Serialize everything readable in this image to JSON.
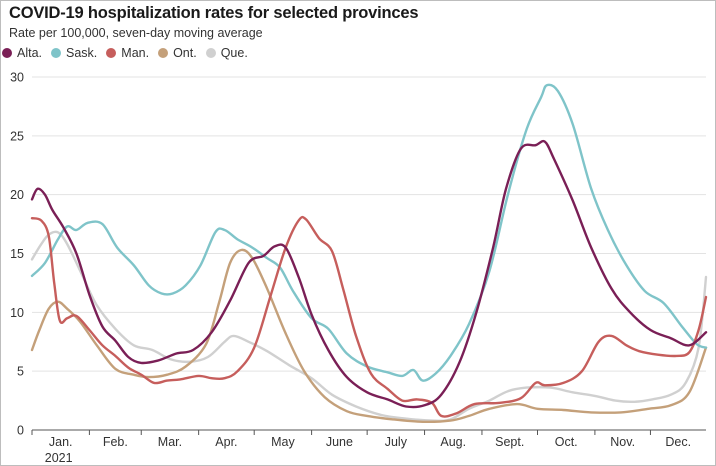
{
  "title": "COVID-19 hospitalization rates for selected provinces",
  "subtitle": "Rate per 100,000, seven-day moving average",
  "chart_data": {
    "type": "line",
    "title": "COVID-19 hospitalization rates for selected provinces",
    "subtitle": "Rate per 100,000, seven-day moving average",
    "xlabel": "",
    "ylabel": "",
    "ylim": [
      0,
      30
    ],
    "yticks": [
      0,
      5,
      10,
      15,
      20,
      25,
      30
    ],
    "xlim": [
      "2021-01-01",
      "2021-12-31"
    ],
    "month_labels": [
      "Jan.",
      "Feb.",
      "Mar.",
      "Apr.",
      "May",
      "June",
      "July",
      "Aug.",
      "Sept.",
      "Oct.",
      "Nov.",
      "Dec."
    ],
    "year_label": "2021",
    "grid": true,
    "legend_position": "top-left",
    "series": [
      {
        "name": "Alta.",
        "color": "#7a1f56",
        "points": [
          [
            "2021-01-01",
            19.6
          ],
          [
            "2021-01-04",
            20.5
          ],
          [
            "2021-01-08",
            20.0
          ],
          [
            "2021-01-12",
            18.7
          ],
          [
            "2021-01-18",
            17.2
          ],
          [
            "2021-01-25",
            15.0
          ],
          [
            "2021-02-01",
            11.5
          ],
          [
            "2021-02-08",
            8.8
          ],
          [
            "2021-02-15",
            7.6
          ],
          [
            "2021-02-22",
            6.2
          ],
          [
            "2021-03-01",
            5.7
          ],
          [
            "2021-03-10",
            5.9
          ],
          [
            "2021-03-20",
            6.5
          ],
          [
            "2021-03-29",
            6.8
          ],
          [
            "2021-04-08",
            8.3
          ],
          [
            "2021-04-18",
            11.0
          ],
          [
            "2021-04-28",
            14.2
          ],
          [
            "2021-05-06",
            14.8
          ],
          [
            "2021-05-12",
            15.6
          ],
          [
            "2021-05-18",
            15.5
          ],
          [
            "2021-05-25",
            13.0
          ],
          [
            "2021-06-01",
            9.8
          ],
          [
            "2021-06-10",
            6.8
          ],
          [
            "2021-06-20",
            4.5
          ],
          [
            "2021-07-01",
            3.2
          ],
          [
            "2021-07-12",
            2.6
          ],
          [
            "2021-07-22",
            2.0
          ],
          [
            "2021-08-01",
            2.1
          ],
          [
            "2021-08-10",
            3.0
          ],
          [
            "2021-08-20",
            5.8
          ],
          [
            "2021-08-29",
            10.0
          ],
          [
            "2021-09-07",
            15.5
          ],
          [
            "2021-09-14",
            20.5
          ],
          [
            "2021-09-22",
            23.9
          ],
          [
            "2021-09-30",
            24.2
          ],
          [
            "2021-10-05",
            24.5
          ],
          [
            "2021-10-10",
            23.0
          ],
          [
            "2021-10-20",
            19.5
          ],
          [
            "2021-10-30",
            15.5
          ],
          [
            "2021-11-10",
            12.0
          ],
          [
            "2021-11-20",
            10.0
          ],
          [
            "2021-12-01",
            8.5
          ],
          [
            "2021-12-12",
            7.8
          ],
          [
            "2021-12-22",
            7.2
          ],
          [
            "2021-12-31",
            8.3
          ]
        ]
      },
      {
        "name": "Sask.",
        "color": "#7fc4c9",
        "points": [
          [
            "2021-01-01",
            13.1
          ],
          [
            "2021-01-08",
            14.2
          ],
          [
            "2021-01-15",
            16.2
          ],
          [
            "2021-01-20",
            17.3
          ],
          [
            "2021-01-25",
            17.0
          ],
          [
            "2021-01-31",
            17.6
          ],
          [
            "2021-02-08",
            17.5
          ],
          [
            "2021-02-16",
            15.5
          ],
          [
            "2021-02-25",
            14.0
          ],
          [
            "2021-03-05",
            12.3
          ],
          [
            "2021-03-12",
            11.6
          ],
          [
            "2021-03-18",
            11.6
          ],
          [
            "2021-03-25",
            12.3
          ],
          [
            "2021-04-02",
            14.0
          ],
          [
            "2021-04-10",
            16.8
          ],
          [
            "2021-04-15",
            17.0
          ],
          [
            "2021-04-22",
            16.2
          ],
          [
            "2021-04-30",
            15.5
          ],
          [
            "2021-05-08",
            14.6
          ],
          [
            "2021-05-15",
            13.8
          ],
          [
            "2021-05-22",
            11.8
          ],
          [
            "2021-06-01",
            9.5
          ],
          [
            "2021-06-10",
            8.6
          ],
          [
            "2021-06-20",
            6.5
          ],
          [
            "2021-07-01",
            5.4
          ],
          [
            "2021-07-12",
            4.9
          ],
          [
            "2021-07-20",
            4.6
          ],
          [
            "2021-07-26",
            5.1
          ],
          [
            "2021-07-31",
            4.2
          ],
          [
            "2021-08-07",
            4.8
          ],
          [
            "2021-08-15",
            6.3
          ],
          [
            "2021-08-25",
            9.0
          ],
          [
            "2021-09-05",
            13.5
          ],
          [
            "2021-09-15",
            20.0
          ],
          [
            "2021-09-25",
            25.5
          ],
          [
            "2021-10-03",
            28.3
          ],
          [
            "2021-10-06",
            29.3
          ],
          [
            "2021-10-12",
            28.8
          ],
          [
            "2021-10-20",
            26.0
          ],
          [
            "2021-10-30",
            20.5
          ],
          [
            "2021-11-08",
            17.0
          ],
          [
            "2021-11-18",
            14.0
          ],
          [
            "2021-11-28",
            11.8
          ],
          [
            "2021-12-08",
            10.8
          ],
          [
            "2021-12-18",
            8.8
          ],
          [
            "2021-12-26",
            7.3
          ],
          [
            "2021-12-31",
            7.0
          ]
        ]
      },
      {
        "name": "Man.",
        "color": "#c65e5c",
        "points": [
          [
            "2021-01-01",
            18.0
          ],
          [
            "2021-01-06",
            17.8
          ],
          [
            "2021-01-10",
            16.5
          ],
          [
            "2021-01-13",
            12.5
          ],
          [
            "2021-01-16",
            9.3
          ],
          [
            "2021-01-20",
            9.5
          ],
          [
            "2021-01-25",
            9.7
          ],
          [
            "2021-02-01",
            8.5
          ],
          [
            "2021-02-08",
            7.2
          ],
          [
            "2021-02-15",
            6.3
          ],
          [
            "2021-02-22",
            5.3
          ],
          [
            "2021-03-01",
            4.7
          ],
          [
            "2021-03-08",
            4.0
          ],
          [
            "2021-03-15",
            4.2
          ],
          [
            "2021-03-22",
            4.3
          ],
          [
            "2021-04-01",
            4.6
          ],
          [
            "2021-04-08",
            4.4
          ],
          [
            "2021-04-15",
            4.4
          ],
          [
            "2021-04-22",
            5.0
          ],
          [
            "2021-05-01",
            7.0
          ],
          [
            "2021-05-10",
            11.5
          ],
          [
            "2021-05-18",
            15.5
          ],
          [
            "2021-05-25",
            17.8
          ],
          [
            "2021-05-29",
            17.9
          ],
          [
            "2021-06-05",
            16.3
          ],
          [
            "2021-06-12",
            15.2
          ],
          [
            "2021-06-18",
            12.0
          ],
          [
            "2021-06-25",
            8.0
          ],
          [
            "2021-07-03",
            4.8
          ],
          [
            "2021-07-12",
            3.5
          ],
          [
            "2021-07-20",
            2.5
          ],
          [
            "2021-07-28",
            2.6
          ],
          [
            "2021-08-05",
            2.3
          ],
          [
            "2021-08-10",
            1.2
          ],
          [
            "2021-08-18",
            1.4
          ],
          [
            "2021-08-28",
            2.2
          ],
          [
            "2021-09-10",
            2.3
          ],
          [
            "2021-09-22",
            2.7
          ],
          [
            "2021-09-30",
            4.0
          ],
          [
            "2021-10-05",
            3.8
          ],
          [
            "2021-10-15",
            4.0
          ],
          [
            "2021-10-25",
            5.0
          ],
          [
            "2021-11-03",
            7.5
          ],
          [
            "2021-11-10",
            8.0
          ],
          [
            "2021-11-18",
            7.2
          ],
          [
            "2021-11-25",
            6.7
          ],
          [
            "2021-12-05",
            6.4
          ],
          [
            "2021-12-15",
            6.3
          ],
          [
            "2021-12-22",
            6.6
          ],
          [
            "2021-12-27",
            8.5
          ],
          [
            "2021-12-31",
            11.3
          ]
        ]
      },
      {
        "name": "Ont.",
        "color": "#c4a07a",
        "points": [
          [
            "2021-01-01",
            6.8
          ],
          [
            "2021-01-05",
            8.5
          ],
          [
            "2021-01-10",
            10.3
          ],
          [
            "2021-01-15",
            10.9
          ],
          [
            "2021-01-20",
            10.3
          ],
          [
            "2021-01-27",
            9.2
          ],
          [
            "2021-02-05",
            7.2
          ],
          [
            "2021-02-15",
            5.2
          ],
          [
            "2021-02-25",
            4.7
          ],
          [
            "2021-03-05",
            4.5
          ],
          [
            "2021-03-15",
            4.7
          ],
          [
            "2021-03-25",
            5.4
          ],
          [
            "2021-04-05",
            7.3
          ],
          [
            "2021-04-12",
            10.8
          ],
          [
            "2021-04-18",
            14.2
          ],
          [
            "2021-04-24",
            15.3
          ],
          [
            "2021-04-30",
            14.6
          ],
          [
            "2021-05-08",
            12.0
          ],
          [
            "2021-05-18",
            8.2
          ],
          [
            "2021-05-28",
            5.0
          ],
          [
            "2021-06-08",
            2.8
          ],
          [
            "2021-06-20",
            1.6
          ],
          [
            "2021-07-01",
            1.2
          ],
          [
            "2021-07-15",
            0.9
          ],
          [
            "2021-07-31",
            0.7
          ],
          [
            "2021-08-15",
            0.8
          ],
          [
            "2021-08-25",
            1.2
          ],
          [
            "2021-09-05",
            1.8
          ],
          [
            "2021-09-20",
            2.2
          ],
          [
            "2021-10-01",
            1.8
          ],
          [
            "2021-10-15",
            1.7
          ],
          [
            "2021-10-30",
            1.5
          ],
          [
            "2021-11-15",
            1.5
          ],
          [
            "2021-11-30",
            1.8
          ],
          [
            "2021-12-12",
            2.1
          ],
          [
            "2021-12-22",
            3.2
          ],
          [
            "2021-12-31",
            7.0
          ]
        ]
      },
      {
        "name": "Que.",
        "color": "#d0d0d0",
        "points": [
          [
            "2021-01-01",
            14.5
          ],
          [
            "2021-01-06",
            15.8
          ],
          [
            "2021-01-10",
            16.6
          ],
          [
            "2021-01-15",
            16.8
          ],
          [
            "2021-01-20",
            15.8
          ],
          [
            "2021-01-28",
            13.2
          ],
          [
            "2021-02-05",
            10.6
          ],
          [
            "2021-02-15",
            8.6
          ],
          [
            "2021-02-25",
            7.2
          ],
          [
            "2021-03-07",
            6.8
          ],
          [
            "2021-03-17",
            6.0
          ],
          [
            "2021-03-27",
            5.8
          ],
          [
            "2021-04-06",
            6.2
          ],
          [
            "2021-04-15",
            7.5
          ],
          [
            "2021-04-20",
            8.0
          ],
          [
            "2021-04-28",
            7.5
          ],
          [
            "2021-05-08",
            6.7
          ],
          [
            "2021-05-20",
            5.5
          ],
          [
            "2021-06-01",
            4.4
          ],
          [
            "2021-06-12",
            3.0
          ],
          [
            "2021-06-25",
            2.0
          ],
          [
            "2021-07-08",
            1.3
          ],
          [
            "2021-07-20",
            1.0
          ],
          [
            "2021-08-05",
            0.8
          ],
          [
            "2021-08-15",
            0.9
          ],
          [
            "2021-08-25",
            1.8
          ],
          [
            "2021-09-05",
            2.5
          ],
          [
            "2021-09-15",
            3.3
          ],
          [
            "2021-09-25",
            3.6
          ],
          [
            "2021-10-08",
            3.6
          ],
          [
            "2021-10-20",
            3.2
          ],
          [
            "2021-11-01",
            2.9
          ],
          [
            "2021-11-12",
            2.5
          ],
          [
            "2021-11-22",
            2.4
          ],
          [
            "2021-12-02",
            2.6
          ],
          [
            "2021-12-12",
            3.0
          ],
          [
            "2021-12-20",
            4.0
          ],
          [
            "2021-12-27",
            7.0
          ],
          [
            "2021-12-31",
            13.0
          ]
        ]
      }
    ]
  }
}
